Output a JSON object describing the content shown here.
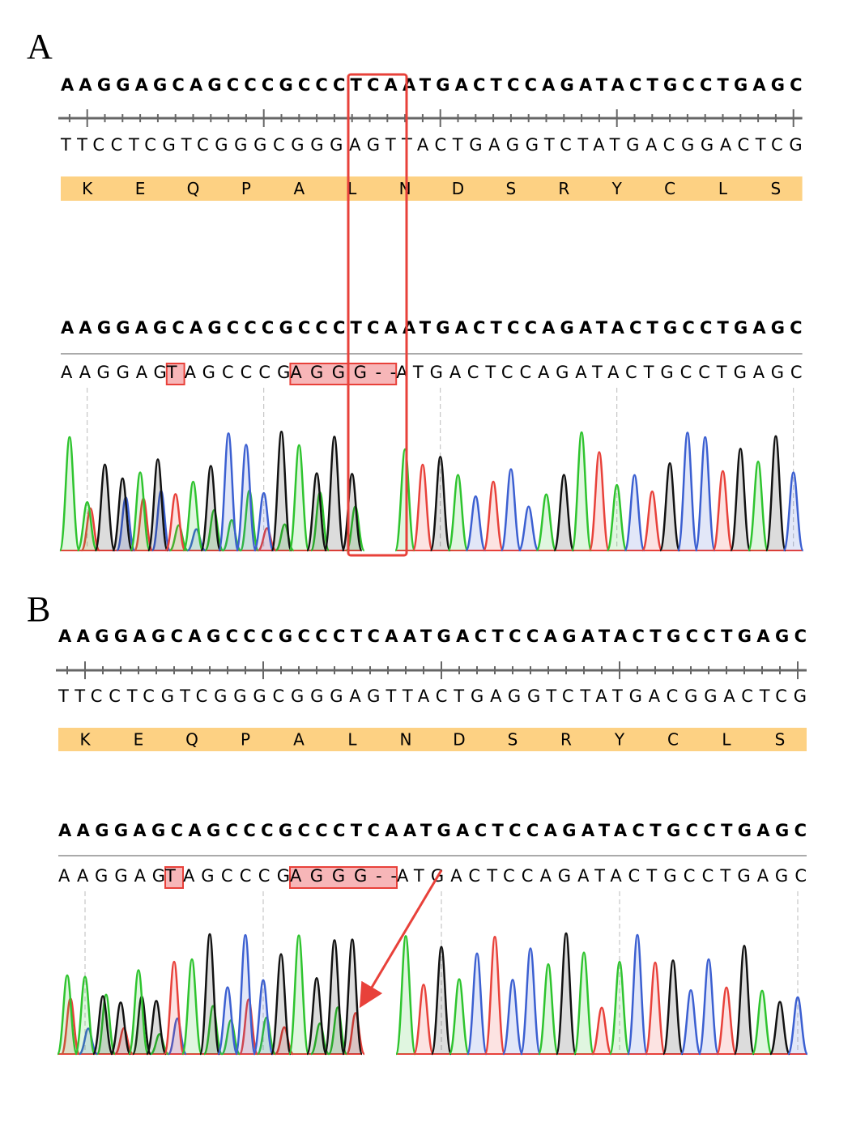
{
  "panels": [
    {
      "label": "A",
      "reference": {
        "sequence": "AAGGAGCAGCCCGCCCTCAATGACTCCAGATACTGCCTGAGC",
        "complement": "TTCCTCGTCGGGCGGGAGTTACTGAGGTCTATGACGGACTCG",
        "translation": [
          "K",
          "E",
          "Q",
          "P",
          "A",
          "L",
          "N",
          "D",
          "S",
          "R",
          "Y",
          "C",
          "L",
          "S"
        ]
      },
      "alignment": {
        "reference": "AAGGAGCAGCCCGCCCTCAATGACTCCAGATACTGCCTGAGC",
        "read": [
          {
            "text": "AAGGAG",
            "highlight": false
          },
          {
            "text": "T",
            "highlight": true
          },
          {
            "text": "AGCCCG",
            "highlight": false
          },
          {
            "text": "AGGG--",
            "highlight": true
          },
          {
            "text": "ATGACTCCAGATACTGCCTGAGC",
            "highlight": false
          }
        ]
      }
    },
    {
      "label": "B",
      "reference": {
        "sequence": "AAGGAGCAGCCCGCCCTCAATGACTCCAGATACTGCCTGAGC",
        "complement": "TTCCTCGTCGGGCGGGAGTTACTGAGGTCTATGACGGACTCG",
        "translation": [
          "K",
          "E",
          "Q",
          "P",
          "A",
          "L",
          "N",
          "D",
          "S",
          "R",
          "Y",
          "C",
          "L",
          "S"
        ]
      },
      "alignment": {
        "reference": "AAGGAGCAGCCCGCCCTCAATGACTCCAGATACTGCCTGAGC",
        "read": [
          {
            "text": "AAGGAG",
            "highlight": false
          },
          {
            "text": "T",
            "highlight": true
          },
          {
            "text": "AGCCCG",
            "highlight": false
          },
          {
            "text": "AGGG--",
            "highlight": true
          },
          {
            "text": "ATGACTCCAGATACTGCCTGAGC",
            "highlight": false
          }
        ]
      }
    }
  ]
}
